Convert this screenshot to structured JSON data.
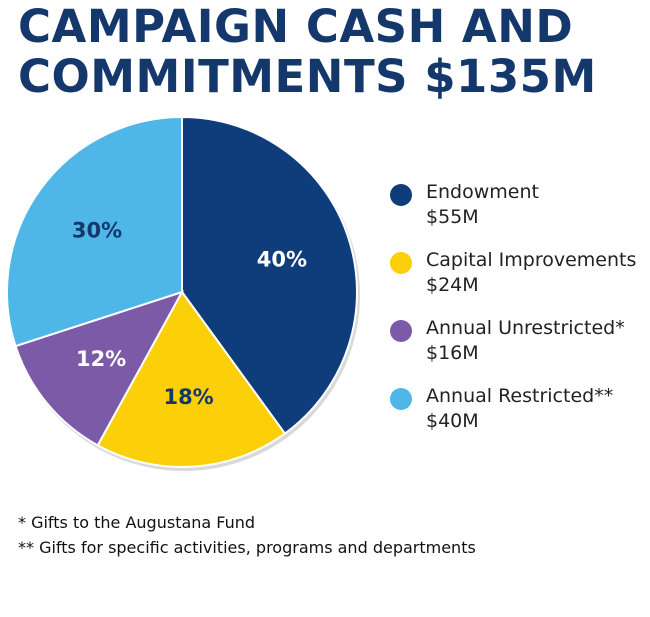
{
  "chart_data": {
    "type": "pie",
    "title": [
      "CAMPAIGN CASH AND",
      "COMMITMENTS $135M"
    ],
    "slices": [
      {
        "name": "Endowment",
        "amount": "$55M",
        "value": 40,
        "label": "40%",
        "color": "#0f3c7a",
        "label_color": "#ffffff"
      },
      {
        "name": "Capital Improvements",
        "amount": "$24M",
        "value": 18,
        "label": "18%",
        "color": "#fcd008",
        "label_color": "#14386b"
      },
      {
        "name": "Annual Unrestricted*",
        "amount": "$16M",
        "value": 12,
        "label": "12%",
        "color": "#7b5ba8",
        "label_color": "#ffffff"
      },
      {
        "name": "Annual Restricted**",
        "amount": "$40M",
        "value": 30,
        "label": "30%",
        "color": "#4fb6e8",
        "label_color": "#14386b"
      }
    ],
    "legend_position": "right",
    "start_angle": "top, clockwise"
  },
  "footnotes": [
    "* Gifts to the Augustana Fund",
    "** Gifts for specific activities, programs and departments"
  ]
}
